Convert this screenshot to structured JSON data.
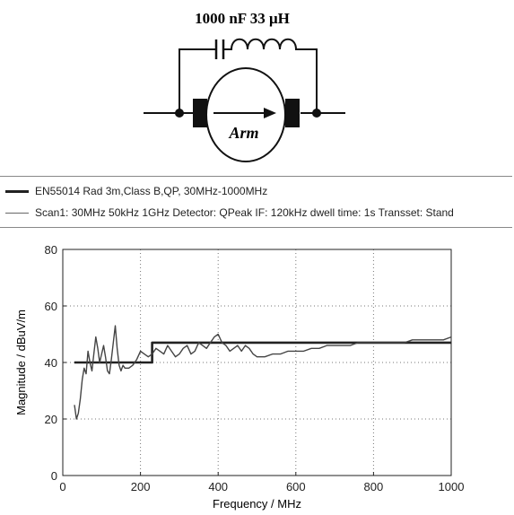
{
  "circuit": {
    "component_label": "1000 nF 33 μH",
    "armature_label": "Arm"
  },
  "legend": [
    {
      "name": "EN55014 Rad 3m,Class B,QP, 30MHz-1000MHz",
      "color": "#222222"
    },
    {
      "name": "Scan1: 30MHz 50kHz 1GHz Detector: QPeak IF: 120kHz dwell time: 1s Transset: Stand",
      "color": "#666666"
    }
  ],
  "chart_data": {
    "type": "line",
    "xlabel": "Frequency / MHz",
    "ylabel": "Magnitude / dBuV/m",
    "xlim": [
      0,
      1000
    ],
    "ylim": [
      0,
      80
    ],
    "xticks": [
      0,
      200,
      400,
      600,
      800,
      1000
    ],
    "yticks": [
      0,
      20,
      40,
      60,
      80
    ],
    "grid": true,
    "series": [
      {
        "name": "EN55014 Rad 3m,Class B,QP, 30MHz-1000MHz",
        "x": [
          30,
          230,
          230,
          1000
        ],
        "y": [
          40,
          40,
          47,
          47
        ]
      },
      {
        "name": "Scan1: 30MHz 50kHz 1GHz Detector: QPeak IF: 120kHz dwell time: 1s Transset: Stand",
        "x": [
          30,
          35,
          40,
          45,
          50,
          55,
          60,
          65,
          70,
          75,
          80,
          85,
          90,
          95,
          100,
          105,
          110,
          115,
          120,
          125,
          130,
          135,
          140,
          145,
          150,
          155,
          160,
          170,
          180,
          190,
          200,
          210,
          220,
          230,
          240,
          250,
          260,
          270,
          280,
          290,
          300,
          310,
          320,
          330,
          340,
          350,
          360,
          370,
          380,
          390,
          400,
          410,
          420,
          430,
          440,
          450,
          460,
          470,
          480,
          490,
          500,
          520,
          540,
          560,
          580,
          600,
          620,
          640,
          660,
          680,
          700,
          720,
          740,
          760,
          780,
          800,
          820,
          840,
          860,
          880,
          900,
          920,
          940,
          960,
          980,
          1000
        ],
        "y": [
          25,
          20,
          22,
          27,
          34,
          38,
          36,
          44,
          40,
          37,
          43,
          49,
          45,
          40,
          43,
          46,
          42,
          37,
          36,
          41,
          47,
          53,
          45,
          39,
          37,
          39,
          38,
          38,
          39,
          41,
          44,
          43,
          42,
          43,
          45,
          44,
          43,
          46,
          44,
          42,
          43,
          45,
          46,
          43,
          44,
          47,
          46,
          45,
          47,
          49,
          50,
          47,
          46,
          44,
          45,
          46,
          44,
          46,
          45,
          43,
          42,
          42,
          43,
          43,
          44,
          44,
          44,
          45,
          45,
          46,
          46,
          46,
          46,
          47,
          47,
          47,
          47,
          47,
          47,
          47,
          48,
          48,
          48,
          48,
          48,
          49
        ]
      }
    ]
  }
}
